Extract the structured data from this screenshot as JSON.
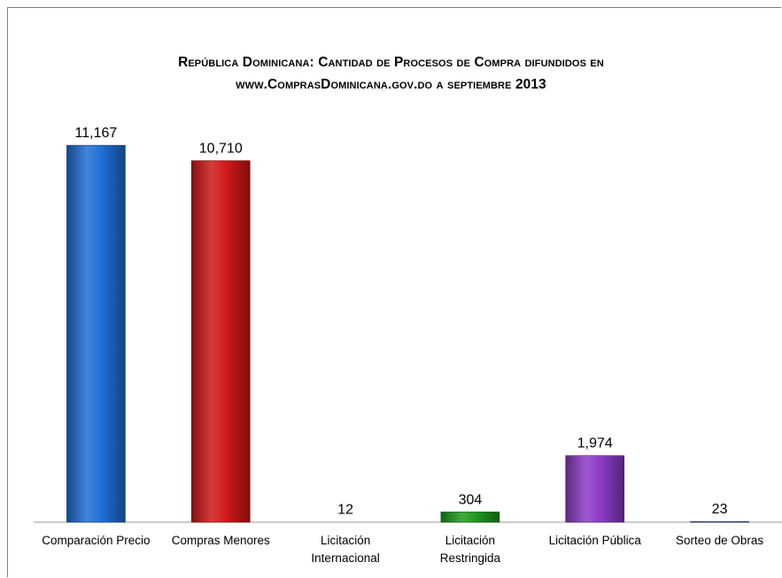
{
  "chart_data": {
    "type": "bar",
    "title_line1": "República Dominicana: Cantidad de Procesos de Compra difundidos en",
    "title_line2": "www.ComprasDominicana.gov.do  a septiembre 2013",
    "categories": [
      [
        "Comparación Precio"
      ],
      [
        "Compras Menores"
      ],
      [
        "Licitación",
        "Internacional"
      ],
      [
        "Licitación",
        "Restringida"
      ],
      [
        "Licitación Pública"
      ],
      [
        "Sorteo de Obras"
      ]
    ],
    "values": [
      11167,
      10710,
      12,
      304,
      1974,
      23
    ],
    "value_labels": [
      "11,167",
      "10,710",
      "12",
      "304",
      "1,974",
      "23"
    ],
    "ylim": [
      0,
      11800
    ],
    "grid": false,
    "legend": "none",
    "colors": [
      "#1f6fd6",
      "#d01818",
      "#f0a040",
      "#1f9a1f",
      "#8d3cc6",
      "#4a5fb0"
    ]
  }
}
